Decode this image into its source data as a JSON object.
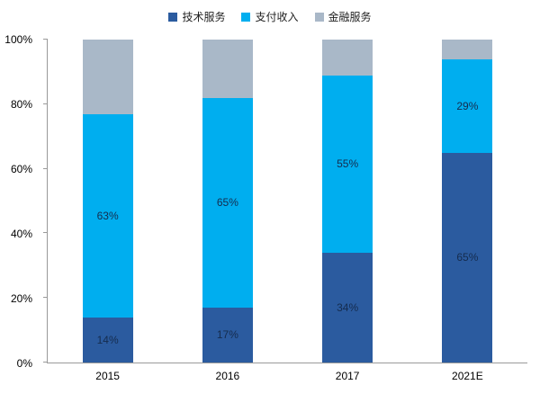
{
  "chart_data": {
    "type": "bar",
    "subtype": "stacked-100-percent",
    "title": "",
    "xlabel": "",
    "ylabel": "",
    "categories": [
      "2015",
      "2016",
      "2017",
      "2021E"
    ],
    "series": [
      {
        "name": "技术服务",
        "color": "#2b5b9f",
        "values": [
          14,
          17,
          34,
          65
        ],
        "labels_visible": true
      },
      {
        "name": "支付收入",
        "color": "#00aeef",
        "values": [
          63,
          65,
          55,
          29
        ],
        "labels_visible": true
      },
      {
        "name": "金融服务",
        "color": "#a9b8c8",
        "values": [
          23,
          18,
          11,
          6
        ],
        "labels_visible": false
      }
    ],
    "y_ticks": [
      "0%",
      "20%",
      "40%",
      "60%",
      "80%",
      "100%"
    ],
    "ylim": [
      0,
      100
    ],
    "grid": false,
    "legend_position": "top",
    "label_suffix": "%"
  }
}
